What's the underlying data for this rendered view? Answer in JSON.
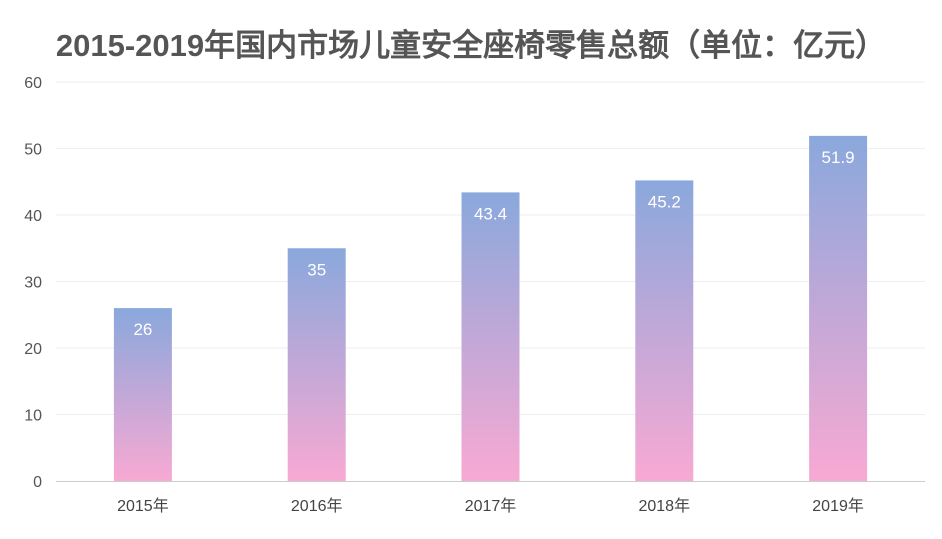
{
  "chart_data": {
    "type": "bar",
    "title": "2015-2019年国内市场儿童安全座椅零售总额（单位：亿元）",
    "categories": [
      "2015年",
      "2016年",
      "2017年",
      "2018年",
      "2019年"
    ],
    "values": [
      26,
      35,
      43.4,
      45.2,
      51.9
    ],
    "data_labels": [
      "26",
      "35",
      "43.4",
      "45.2",
      "51.9"
    ],
    "ylim": [
      0,
      60
    ],
    "yticks": [
      0,
      10,
      20,
      30,
      40,
      50,
      60
    ],
    "grid": true,
    "legend": "none",
    "colors": {
      "bar_top": "#8aa8dc",
      "bar_bottom": "#f8a9d3",
      "grid": "#eeeeee",
      "axis": "#cccccc"
    }
  }
}
